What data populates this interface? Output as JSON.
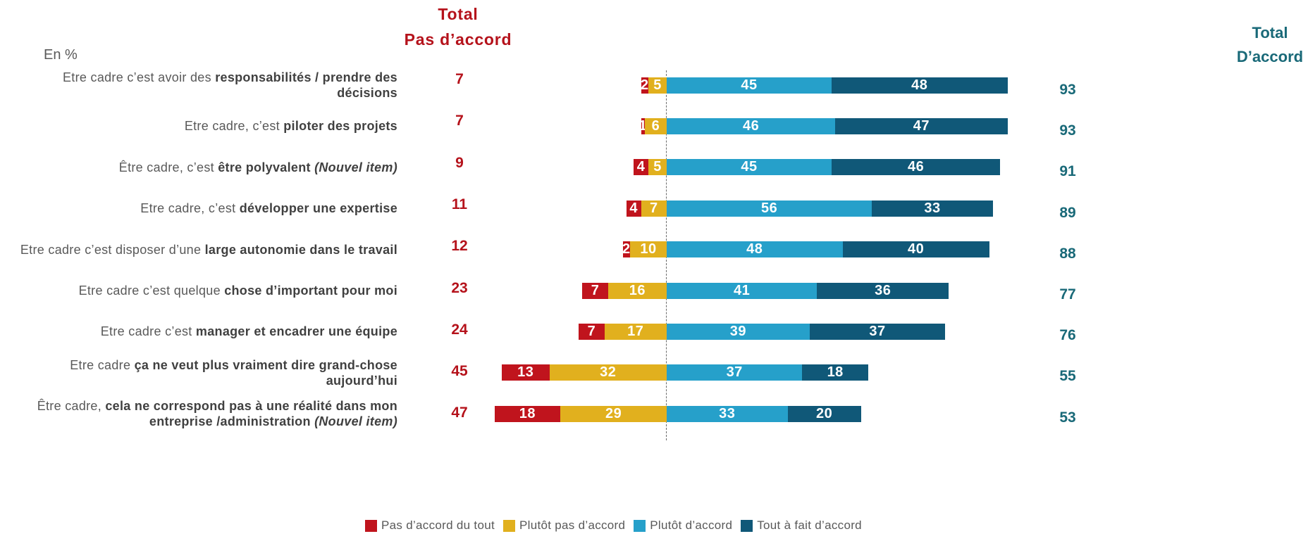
{
  "header": {
    "unit_label": "En %",
    "total_pas_daccord_title": [
      "Total",
      "Pas d’accord"
    ],
    "total_daccord_title": [
      "Total",
      "D’accord"
    ]
  },
  "colors": {
    "total_pas_daccord": "#B5121B",
    "total_daccord": "#196978"
  },
  "chart_data": {
    "type": "bar",
    "orientation": "horizontal",
    "stacking": "diverging",
    "legend_position": "bottom",
    "grid": false,
    "categories": [
      [
        "Etre cadre c’est avoir des ",
        "responsabilités / prendre des\ndécisions"
      ],
      [
        "Etre cadre, c’est ",
        "piloter des projets"
      ],
      [
        "Être cadre, c’est ",
        "être polyvalent",
        " (Nouvel item)"
      ],
      [
        "Etre cadre, c’est ",
        "développer une expertise"
      ],
      [
        "Etre cadre c’est disposer d’une ",
        "large autonomie dans le travail"
      ],
      [
        "Etre cadre c’est quelque ",
        "chose d’important pour moi"
      ],
      [
        "Etre cadre c’est ",
        "manager et encadrer une équipe"
      ],
      [
        "Etre cadre ",
        "ça ne veut plus vraiment dire grand-chose\naujourd’hui"
      ],
      [
        "Être cadre, ",
        "cela ne correspond pas à une réalité dans mon\nentreprise /administration",
        " (Nouvel item)"
      ]
    ],
    "series": [
      {
        "name": "Pas d’accord du tout",
        "color": "#C0141D",
        "values": [
          2,
          1,
          4,
          4,
          2,
          7,
          7,
          13,
          18
        ]
      },
      {
        "name": "Plutôt pas d’accord",
        "color": "#E1B01E",
        "values": [
          5,
          6,
          5,
          7,
          10,
          16,
          17,
          32,
          29
        ]
      },
      {
        "name": "Plutôt d’accord",
        "color": "#26A0CA",
        "values": [
          45,
          46,
          45,
          56,
          48,
          41,
          39,
          37,
          33
        ]
      },
      {
        "name": "Tout à fait d’accord",
        "color": "#105878",
        "values": [
          48,
          47,
          46,
          33,
          40,
          36,
          37,
          18,
          20
        ]
      }
    ],
    "total_pas_daccord": [
      7,
      7,
      9,
      11,
      12,
      23,
      24,
      45,
      47
    ],
    "total_daccord": [
      93,
      93,
      91,
      89,
      88,
      77,
      76,
      55,
      53
    ]
  }
}
